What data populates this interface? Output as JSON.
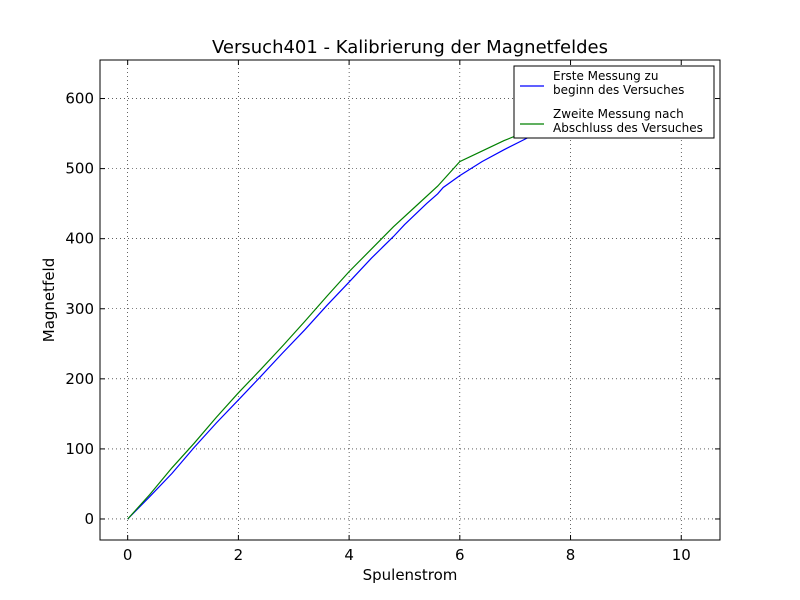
{
  "chart_data": {
    "type": "line",
    "title": "Versuch401 - Kalibrierung der Magnetfeldes",
    "xlabel": "Spulenstrom",
    "ylabel": "Magnetfeld",
    "xlim": [
      -0.5,
      10.7
    ],
    "ylim": [
      -30,
      655
    ],
    "xticks": [
      0,
      2,
      4,
      6,
      8,
      10
    ],
    "yticks": [
      0,
      100,
      200,
      300,
      400,
      500,
      600
    ],
    "grid": true,
    "legend_position": "top-right",
    "series": [
      {
        "name": "Erste Messung zu beginn des Versuches",
        "legend_lines": [
          "Erste Messung zu",
          "beginn des Versuches"
        ],
        "color": "#0000ff",
        "x": [
          0,
          0.4,
          0.8,
          1.2,
          1.6,
          2.0,
          2.4,
          2.8,
          3.2,
          3.6,
          4.0,
          4.4,
          4.8,
          5.0,
          5.4,
          5.6,
          5.7,
          6.0,
          6.4,
          6.8,
          7.2,
          7.6,
          8.0,
          8.4,
          8.8,
          9.2,
          9.6,
          10.0,
          10.2
        ],
        "y": [
          0,
          32,
          65,
          102,
          137,
          170,
          203,
          237,
          270,
          305,
          338,
          372,
          403,
          420,
          450,
          464,
          473,
          490,
          510,
          527,
          543,
          558,
          571,
          583,
          594,
          604,
          614,
          622,
          626
        ]
      },
      {
        "name": "Zweite Messung nach Abschluss des Versuches",
        "legend_lines": [
          "Zweite Messung nach",
          "Abschluss des Versuches"
        ],
        "color": "#008000",
        "x": [
          0,
          0.4,
          0.8,
          1.2,
          1.6,
          2.0,
          2.4,
          2.8,
          3.2,
          3.6,
          4.0,
          4.4,
          4.8,
          5.2,
          5.6,
          6.0,
          6.4,
          6.8,
          7.2,
          7.6,
          8.0,
          8.4,
          8.8
        ],
        "y": [
          0,
          35,
          73,
          108,
          145,
          180,
          213,
          247,
          282,
          318,
          353,
          385,
          417,
          446,
          475,
          510,
          525,
          540,
          553,
          566,
          578,
          590,
          601
        ]
      }
    ]
  }
}
